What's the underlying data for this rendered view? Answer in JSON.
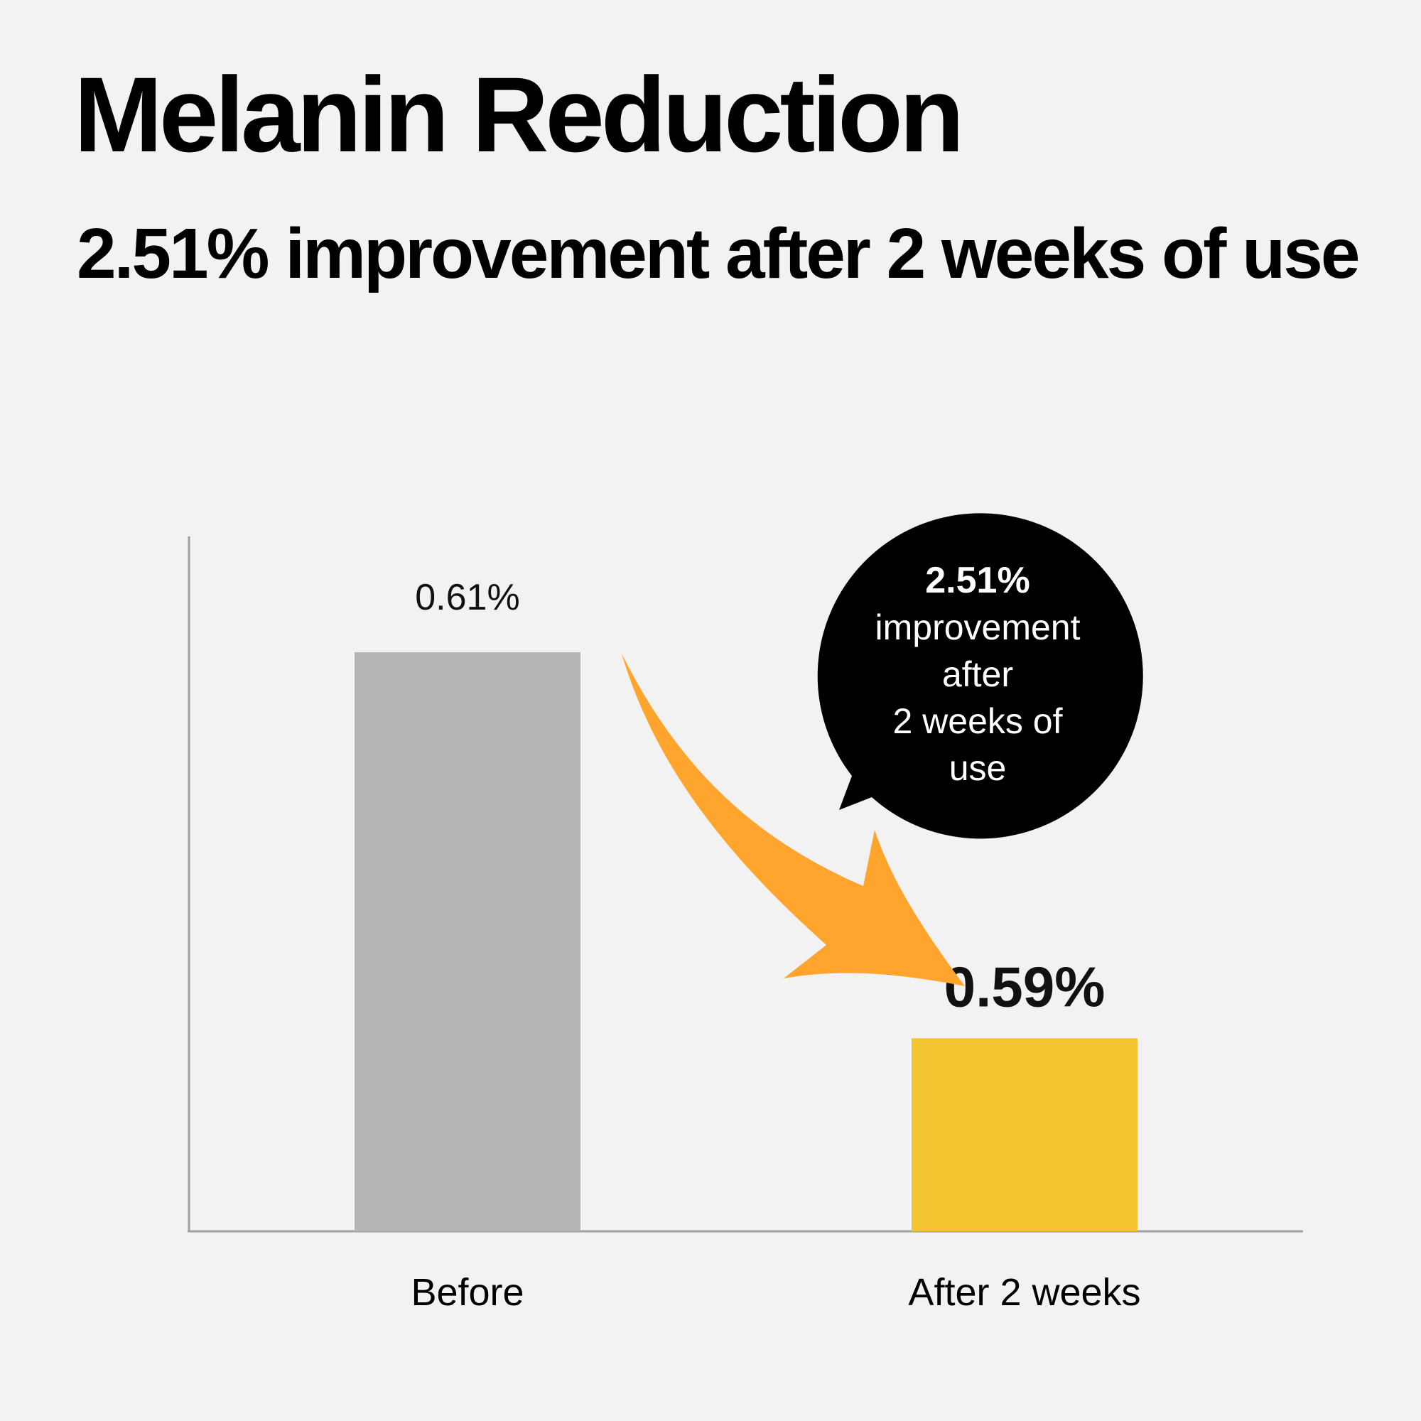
{
  "title": "Melanin Reduction",
  "subtitle": "2.51% improvement after 2 weeks of use",
  "colors": {
    "background": "#f2f2f2",
    "before_bar": "#b5b5b5",
    "after_bar": "#f5c431",
    "arrow": "#ffa52e",
    "bubble": "#000000",
    "axis": "#a0a0a0"
  },
  "callout": {
    "percent": "2.51%",
    "lines": [
      "improvement",
      "after",
      "2 weeks of",
      "use"
    ]
  },
  "chart_data": {
    "type": "bar",
    "categories": [
      "Before",
      "After 2 weeks"
    ],
    "values": [
      0.61,
      0.59
    ],
    "value_labels": [
      "0.61%",
      "0.59%"
    ],
    "title": "Melanin Reduction",
    "subtitle": "2.51% improvement after 2 weeks of use",
    "xlabel": "",
    "ylabel": "",
    "ylim": [
      0.58,
      0.616
    ],
    "grid": false,
    "legend": "none"
  }
}
